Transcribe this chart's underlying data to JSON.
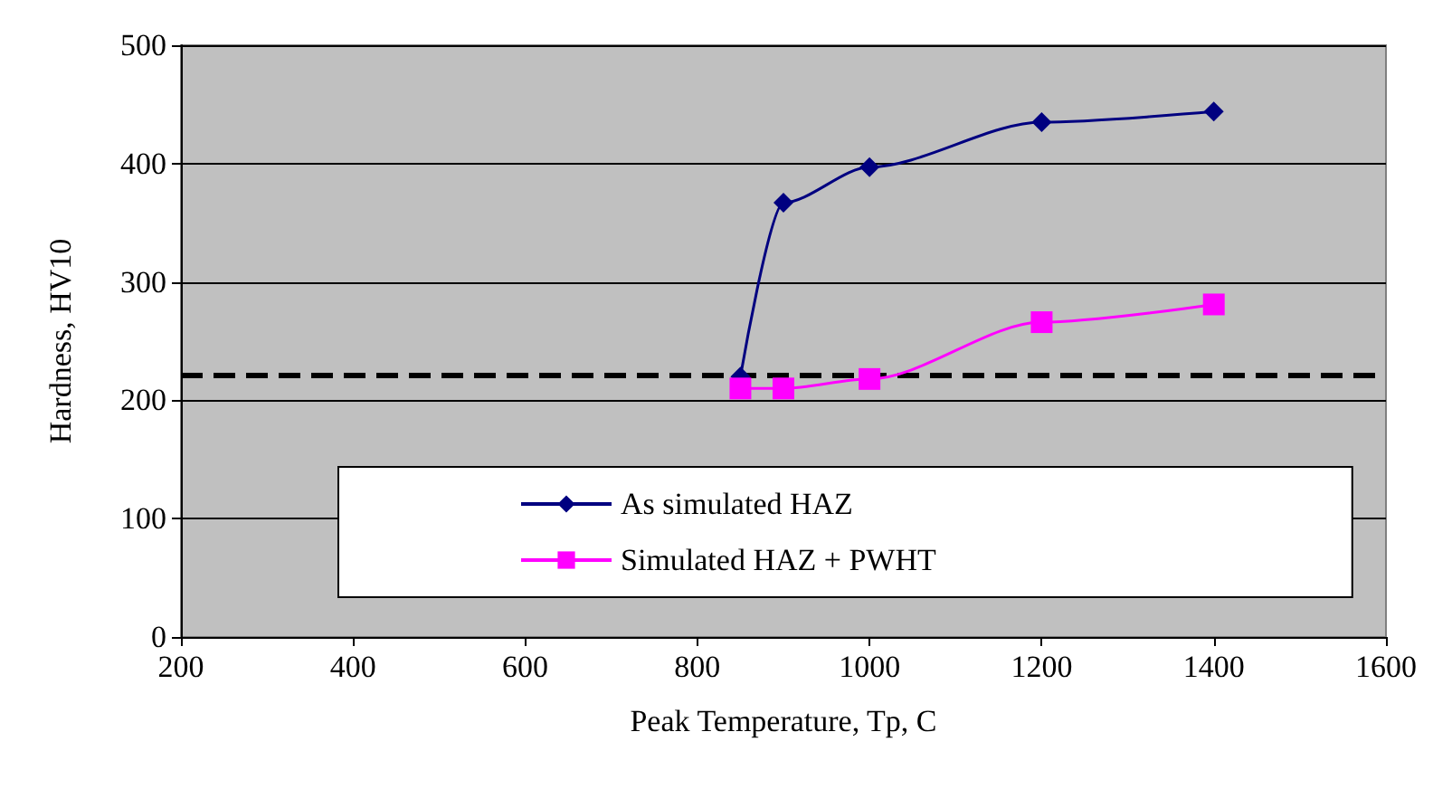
{
  "chart_data": {
    "type": "line",
    "xlabel": "Peak Temperature, Tp, C",
    "ylabel": "Hardness, HV10",
    "x": [
      850,
      900,
      1000,
      1200,
      1400
    ],
    "series": [
      {
        "name": "As simulated HAZ",
        "color": "#000080",
        "marker": "diamond",
        "values": [
          220,
          367,
          397,
          435,
          444
        ]
      },
      {
        "name": "Simulated HAZ + PWHT",
        "color": "#ff00ff",
        "marker": "square",
        "values": [
          210,
          210,
          218,
          266,
          281
        ]
      }
    ],
    "xlim": [
      200,
      1600
    ],
    "xticks": [
      200,
      400,
      600,
      800,
      1000,
      1200,
      1400,
      1600
    ],
    "ylim": [
      0,
      500
    ],
    "yticks": [
      0,
      100,
      200,
      300,
      400,
      500
    ],
    "ref_lines": [
      {
        "axis": "y",
        "value": 222,
        "color": "#000000",
        "line_style": "dashed"
      }
    ],
    "grid": "y",
    "legend": "bottom"
  }
}
